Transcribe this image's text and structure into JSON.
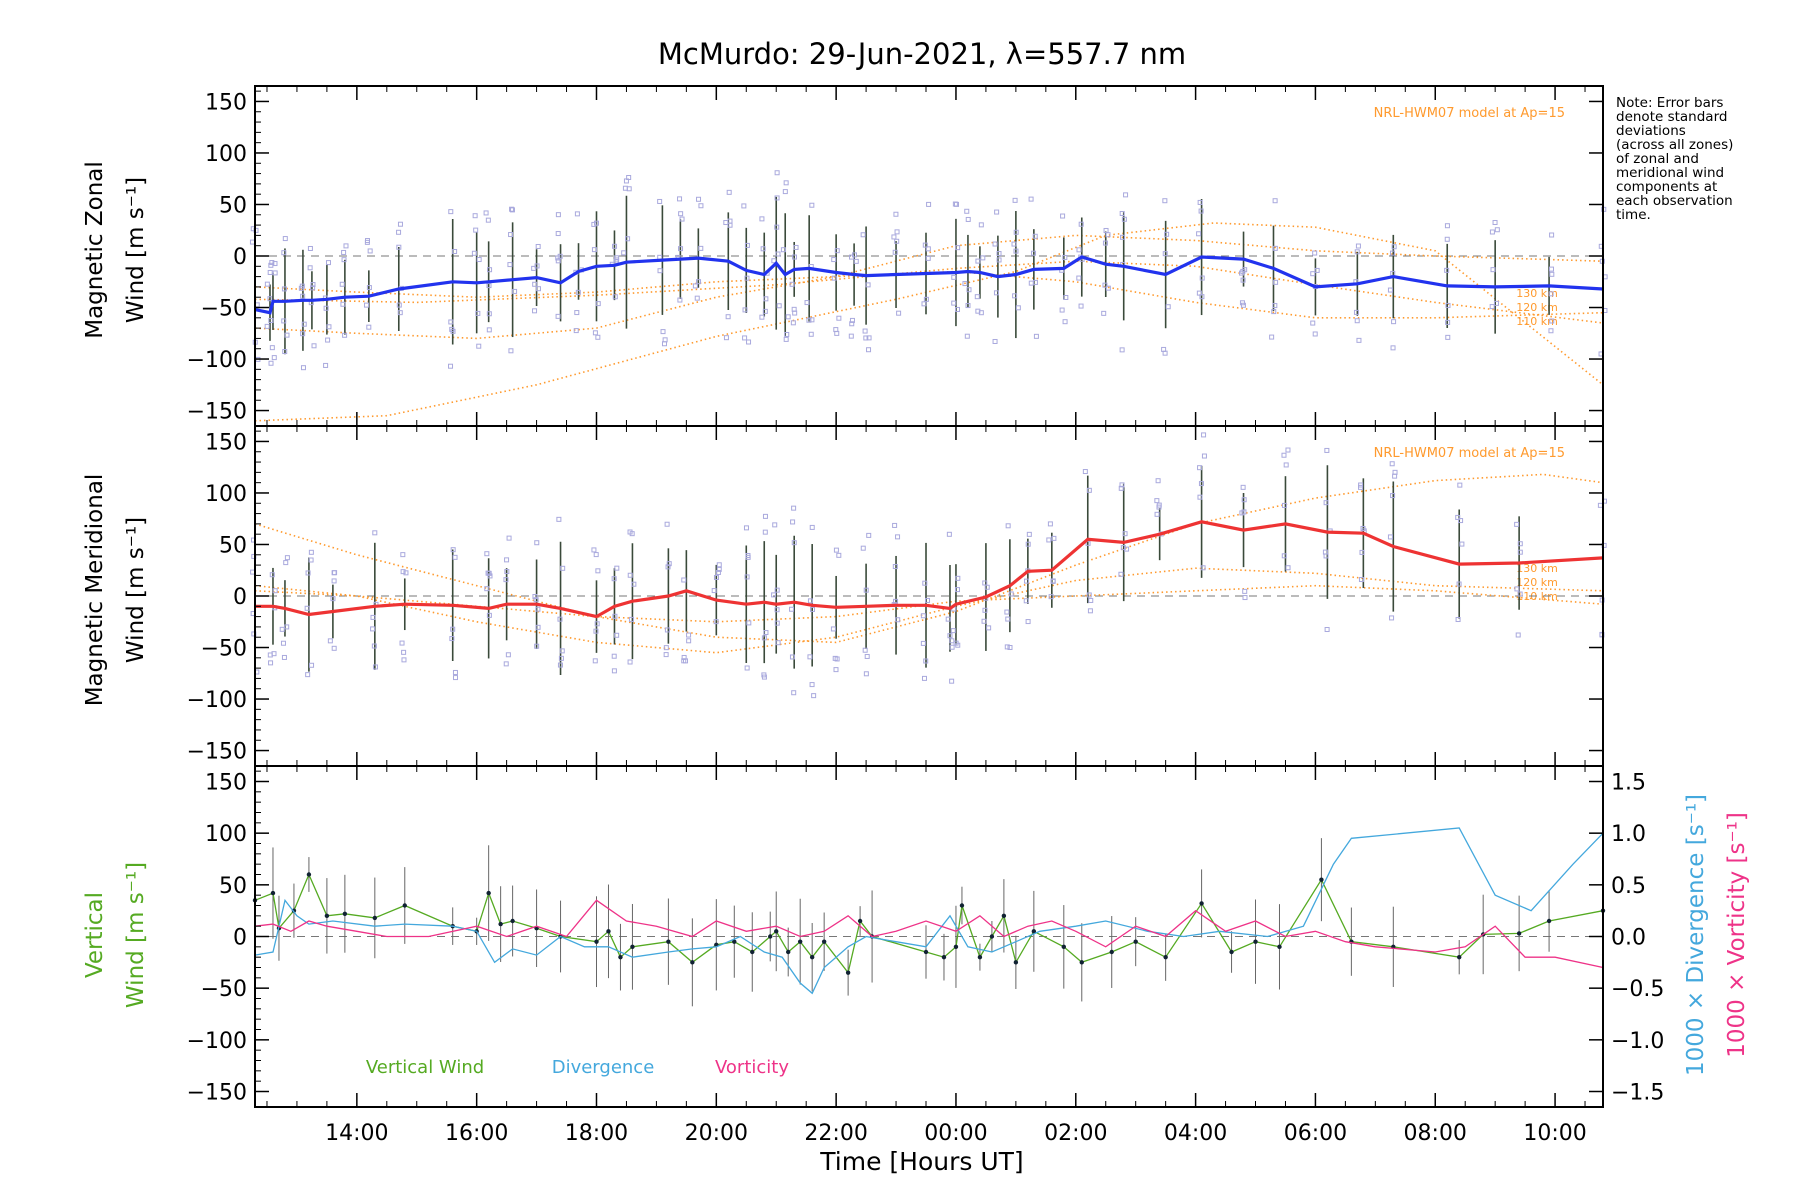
{
  "figure": {
    "title": "McMurdo: 29-Jun-2021, λ=557.7 nm",
    "note": [
      "Note: Error bars",
      "denote standard",
      "deviations",
      "(across all zones)",
      "of zonal and",
      "meridional wind",
      "components at",
      "each observation",
      "time."
    ],
    "xlabel": "Time [Hours UT]"
  },
  "colors": {
    "zonal": "#2233ee",
    "meridional": "#ee3333",
    "model": "#ff9a2e",
    "zone_points": "#a9a9dd",
    "vertical": "#55aa22",
    "divergence": "#44a8dd",
    "vorticity": "#ee3388",
    "errorbar": "#666666"
  },
  "chart_data": [
    {
      "type": "line",
      "panel": "zonal",
      "ylabel": [
        "Magnetic Zonal",
        "Wind [m s⁻¹]"
      ],
      "model_label": "NRL-HWM07 model at Ap=15",
      "model_altitudes": [
        "130 km",
        "120 km",
        "110 km"
      ],
      "xlim": [
        12.3,
        34.8
      ],
      "ylim": [
        -165,
        165
      ],
      "x_ticks": [
        14,
        16,
        18,
        20,
        22,
        24,
        26,
        28,
        30,
        32,
        34
      ],
      "y_ticks": [
        -150,
        -100,
        -50,
        0,
        50,
        100,
        150
      ],
      "series": [
        {
          "name": "Magnetic Zonal Wind",
          "x": [
            12.3,
            12.55,
            12.6,
            12.8,
            13.1,
            13.25,
            13.5,
            13.8,
            14.2,
            14.7,
            15.6,
            16.0,
            16.2,
            16.6,
            17.0,
            17.4,
            17.7,
            18.0,
            18.3,
            18.5,
            19.1,
            19.4,
            19.7,
            20.2,
            20.5,
            20.8,
            21.0,
            21.15,
            21.3,
            21.55,
            22.0,
            22.3,
            22.5,
            23.0,
            23.5,
            24.0,
            24.2,
            24.4,
            24.7,
            25.0,
            25.3,
            25.8,
            26.1,
            26.5,
            26.8,
            27.5,
            28.1,
            28.8,
            29.3,
            30.0,
            30.7,
            31.3,
            32.2,
            33.0,
            33.9,
            34.8
          ],
          "y": [
            -52,
            -55,
            -44,
            -44,
            -43,
            -43,
            -42,
            -40,
            -39,
            -32,
            -25,
            -26,
            -25,
            -23,
            -21,
            -26,
            -15,
            -10,
            -9,
            -6,
            -4,
            -3,
            -2,
            -5,
            -14,
            -18,
            -7,
            -18,
            -13,
            -12,
            -16,
            -18,
            -19,
            -18,
            -17,
            -16,
            -15,
            -16,
            -20,
            -18,
            -13,
            -12,
            -1,
            -8,
            -10,
            -18,
            -1,
            -3,
            -12,
            -30,
            -27,
            -20,
            -29,
            -30,
            -29,
            -32
          ]
        }
      ],
      "model_curves": [
        {
          "altitude": "130 km",
          "x": [
            12.3,
            14.5,
            17,
            20,
            23,
            25,
            26.5,
            28.3,
            30,
            32,
            34.8
          ],
          "y": [
            -160,
            -155,
            -125,
            -78,
            -42,
            -15,
            20,
            32,
            28,
            5,
            -125
          ]
        },
        {
          "altitude": "120 km",
          "x": [
            12.3,
            15,
            18,
            21,
            24,
            26,
            28,
            30,
            32,
            34.8
          ],
          "y": [
            -42,
            -45,
            -38,
            -28,
            -12,
            -5,
            -10,
            -28,
            -45,
            -65
          ]
        },
        {
          "altitude": "110 km",
          "x": [
            12.3,
            14,
            16,
            18,
            20,
            22,
            24,
            26,
            28,
            30,
            32,
            34.8
          ],
          "y": [
            -70,
            -75,
            -80,
            -70,
            -40,
            -20,
            10,
            20,
            15,
            5,
            0,
            -5
          ]
        },
        {
          "altitude": "",
          "x": [
            12.3,
            14,
            16,
            18,
            20,
            22,
            24,
            26,
            28,
            30,
            32,
            34.8
          ],
          "y": [
            -30,
            -35,
            -40,
            -35,
            -25,
            -20,
            -15,
            -25,
            -45,
            -60,
            -60,
            -55
          ]
        }
      ]
    },
    {
      "type": "line",
      "panel": "meridional",
      "ylabel": [
        "Magnetic Meridional",
        "Wind [m s⁻¹]"
      ],
      "model_label": "NRL-HWM07 model at Ap=15",
      "model_altitudes": [
        "130 km",
        "120 km",
        "110 km"
      ],
      "xlim": [
        12.3,
        34.8
      ],
      "ylim": [
        -165,
        165
      ],
      "x_ticks": [
        14,
        16,
        18,
        20,
        22,
        24,
        26,
        28,
        30,
        32,
        34
      ],
      "y_ticks": [
        -150,
        -100,
        -50,
        0,
        50,
        100,
        150
      ],
      "series": [
        {
          "name": "Magnetic Meridional Wind",
          "x": [
            12.3,
            12.6,
            12.8,
            13.2,
            13.6,
            14.3,
            14.8,
            15.6,
            16.2,
            16.5,
            17.0,
            17.4,
            18.0,
            18.3,
            18.6,
            19.2,
            19.5,
            20.0,
            20.5,
            20.8,
            21.0,
            21.3,
            21.6,
            22.0,
            22.5,
            23.0,
            23.5,
            23.9,
            24.0,
            24.5,
            24.9,
            25.2,
            25.6,
            26.2,
            26.8,
            27.4,
            28.1,
            28.8,
            29.5,
            30.2,
            30.8,
            31.3,
            32.4,
            33.4,
            34.8
          ],
          "y": [
            -10,
            -10,
            -12,
            -18,
            -15,
            -10,
            -8,
            -9,
            -12,
            -8,
            -8,
            -12,
            -20,
            -10,
            -5,
            0,
            5,
            -4,
            -8,
            -6,
            -8,
            -6,
            -9,
            -11,
            -10,
            -9,
            -9,
            -12,
            -8,
            -1,
            10,
            24,
            25,
            55,
            52,
            60,
            72,
            64,
            70,
            62,
            61,
            48,
            31,
            32,
            37
          ]
        }
      ],
      "model_curves": [
        {
          "altitude": "130 km",
          "x": [
            12.3,
            14,
            16,
            18,
            20,
            22,
            24,
            26,
            28,
            30,
            32,
            33.8,
            34.8
          ],
          "y": [
            70,
            40,
            10,
            -20,
            -40,
            -45,
            -15,
            30,
            70,
            95,
            112,
            118,
            110
          ]
        },
        {
          "altitude": "120 km",
          "x": [
            12.3,
            14,
            16,
            18,
            20,
            22,
            24,
            26,
            28,
            30,
            32,
            34.8
          ],
          "y": [
            10,
            0,
            -25,
            -45,
            -55,
            -40,
            -10,
            15,
            27,
            22,
            10,
            5
          ]
        },
        {
          "altitude": "110 km",
          "x": [
            12.3,
            14,
            16,
            18,
            20,
            22,
            24,
            26,
            28,
            30,
            32,
            34.8
          ],
          "y": [
            5,
            0,
            -10,
            -20,
            -25,
            -20,
            -5,
            0,
            5,
            10,
            5,
            -8
          ]
        }
      ]
    },
    {
      "type": "line",
      "panel": "vertical",
      "ylabel": [
        "Vertical",
        "Wind [m s⁻¹]"
      ],
      "right_ylabels": [
        "1000 × Divergence [s⁻¹]",
        "1000 × Vorticity [s⁻¹]"
      ],
      "legend": [
        "Vertical Wind",
        "Divergence",
        "Vorticity"
      ],
      "xlim": [
        12.3,
        34.8
      ],
      "ylim": [
        -165,
        165
      ],
      "right_ylim": [
        -1.65,
        1.65
      ],
      "x_ticks": [
        14,
        16,
        18,
        20,
        22,
        24,
        26,
        28,
        30,
        32,
        34
      ],
      "x_tick_labels": [
        "14:00",
        "16:00",
        "18:00",
        "20:00",
        "22:00",
        "00:00",
        "02:00",
        "04:00",
        "06:00",
        "08:00",
        "10:00"
      ],
      "y_ticks": [
        -150,
        -100,
        -50,
        0,
        50,
        100,
        150
      ],
      "right_ticks": [
        -1.5,
        -1.0,
        -0.5,
        0.0,
        0.5,
        1.0,
        1.5
      ],
      "right_tick_labels": [
        "−1.5",
        "−1.0",
        "−0.5",
        "0.0",
        "0.5",
        "1.0",
        "1.5"
      ],
      "series": [
        {
          "name": "Vertical Wind",
          "axis": "left",
          "x": [
            12.3,
            12.6,
            12.7,
            12.95,
            13.2,
            13.5,
            13.8,
            14.3,
            14.8,
            15.6,
            16.0,
            16.2,
            16.4,
            16.6,
            17.0,
            17.4,
            18.0,
            18.2,
            18.4,
            18.6,
            19.2,
            19.6,
            20.0,
            20.3,
            20.6,
            20.9,
            21.0,
            21.2,
            21.4,
            21.6,
            21.8,
            22.2,
            22.4,
            22.6,
            23.5,
            23.8,
            24.0,
            24.1,
            24.4,
            24.6,
            24.8,
            25.0,
            25.3,
            25.8,
            26.1,
            26.6,
            27.0,
            27.5,
            28.1,
            28.6,
            29.0,
            29.4,
            30.1,
            30.6,
            31.3,
            32.4,
            32.8,
            33.4,
            33.9,
            34.8
          ],
          "y": [
            35,
            42,
            8,
            25,
            60,
            20,
            22,
            18,
            30,
            10,
            5,
            42,
            12,
            15,
            8,
            0,
            -5,
            5,
            -20,
            -10,
            -5,
            -25,
            -8,
            -5,
            -15,
            0,
            5,
            -15,
            -5,
            -20,
            -5,
            -35,
            15,
            0,
            -15,
            -20,
            -10,
            30,
            -20,
            0,
            20,
            -25,
            5,
            -10,
            -25,
            -15,
            -5,
            -20,
            32,
            -15,
            -5,
            -10,
            55,
            -5,
            -10,
            -20,
            2,
            3,
            15,
            25
          ]
        },
        {
          "name": "Divergence",
          "axis": "right",
          "x": [
            12.3,
            12.6,
            12.8,
            13.0,
            13.2,
            13.6,
            14.3,
            14.8,
            15.6,
            16.0,
            16.3,
            16.6,
            17.0,
            17.4,
            17.8,
            18.2,
            18.6,
            19.2,
            19.6,
            20.0,
            20.4,
            20.8,
            21.1,
            21.4,
            21.6,
            21.8,
            22.0,
            22.2,
            22.5,
            23.0,
            23.5,
            23.9,
            24.2,
            24.6,
            25.0,
            25.4,
            26.0,
            26.5,
            27.2,
            27.8,
            28.4,
            29.2,
            29.8,
            30.3,
            30.6,
            32.4,
            33.0,
            33.6,
            34.3,
            34.8
          ],
          "y": [
            -0.18,
            -0.15,
            0.35,
            0.2,
            0.12,
            0.15,
            0.1,
            0.12,
            0.1,
            0.05,
            -0.25,
            -0.12,
            -0.18,
            0.0,
            -0.1,
            -0.1,
            -0.2,
            -0.15,
            -0.12,
            -0.1,
            0.0,
            -0.15,
            -0.2,
            -0.45,
            -0.55,
            -0.3,
            -0.2,
            -0.1,
            0.0,
            -0.05,
            -0.1,
            0.2,
            -0.1,
            -0.15,
            -0.05,
            0.05,
            0.1,
            0.15,
            0.05,
            0.0,
            0.05,
            0.0,
            0.1,
            0.7,
            0.95,
            1.05,
            0.4,
            0.25,
            0.7,
            1.0
          ]
        },
        {
          "name": "Vorticity",
          "axis": "right",
          "x": [
            12.3,
            12.6,
            12.9,
            13.2,
            13.5,
            14.0,
            14.5,
            15.2,
            16.0,
            16.5,
            17.0,
            17.5,
            18.0,
            18.5,
            19.0,
            19.6,
            20.0,
            20.5,
            21.0,
            21.4,
            21.8,
            22.2,
            22.6,
            23.0,
            23.5,
            24.0,
            24.4,
            24.8,
            25.2,
            25.6,
            26.0,
            26.5,
            27.0,
            27.5,
            28.0,
            28.5,
            29.0,
            29.5,
            30.0,
            30.5,
            31.0,
            32.0,
            32.5,
            33.0,
            33.5,
            34.0,
            34.8
          ],
          "y": [
            0.1,
            0.12,
            0.05,
            0.15,
            0.1,
            0.05,
            0.0,
            0.0,
            0.1,
            0.0,
            0.1,
            0.0,
            0.35,
            0.15,
            0.1,
            0.0,
            0.15,
            0.05,
            0.1,
            0.0,
            0.05,
            0.2,
            0.0,
            0.05,
            0.15,
            0.05,
            0.2,
            0.0,
            0.1,
            0.15,
            0.05,
            -0.1,
            0.1,
            0.0,
            0.25,
            0.05,
            0.15,
            0.0,
            0.05,
            -0.05,
            -0.1,
            -0.15,
            -0.1,
            0.1,
            -0.2,
            -0.2,
            -0.3
          ]
        }
      ]
    }
  ]
}
